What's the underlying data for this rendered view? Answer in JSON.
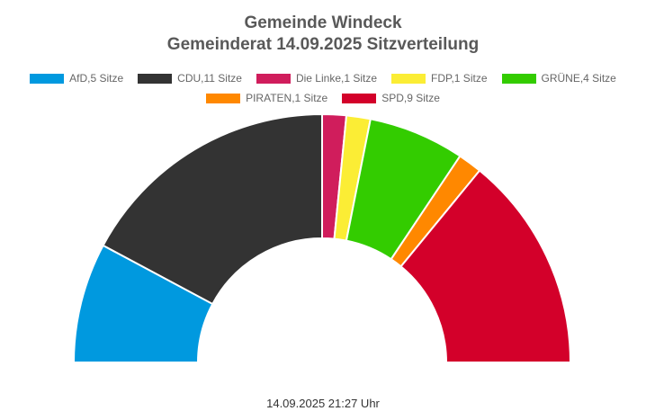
{
  "chart_data": {
    "type": "pie",
    "subtype": "parliament-semicircle",
    "title": "Gemeinde Windeck",
    "subtitle": "Gemeinderat 14.09.2025 Sitzverteilung",
    "legend_placement": "top",
    "series": [
      {
        "name": "AfD,5 Sitze",
        "value": 5,
        "color": "#0099df"
      },
      {
        "name": "CDU,11 Sitze",
        "value": 11,
        "color": "#333333"
      },
      {
        "name": "Die Linke,1 Sitze",
        "value": 1,
        "color": "#d01d5c"
      },
      {
        "name": "FDP,1 Sitze",
        "value": 1,
        "color": "#fbed35"
      },
      {
        "name": "GRÜNE,4 Sitze",
        "value": 4,
        "color": "#33cc00"
      },
      {
        "name": "PIRATEN,1 Sitze",
        "value": 1,
        "color": "#ff8800"
      },
      {
        "name": "SPD,9 Sitze",
        "value": 9,
        "color": "#d3002a"
      }
    ]
  },
  "footer": {
    "timestamp": "14.09.2025 21:27 Uhr"
  }
}
